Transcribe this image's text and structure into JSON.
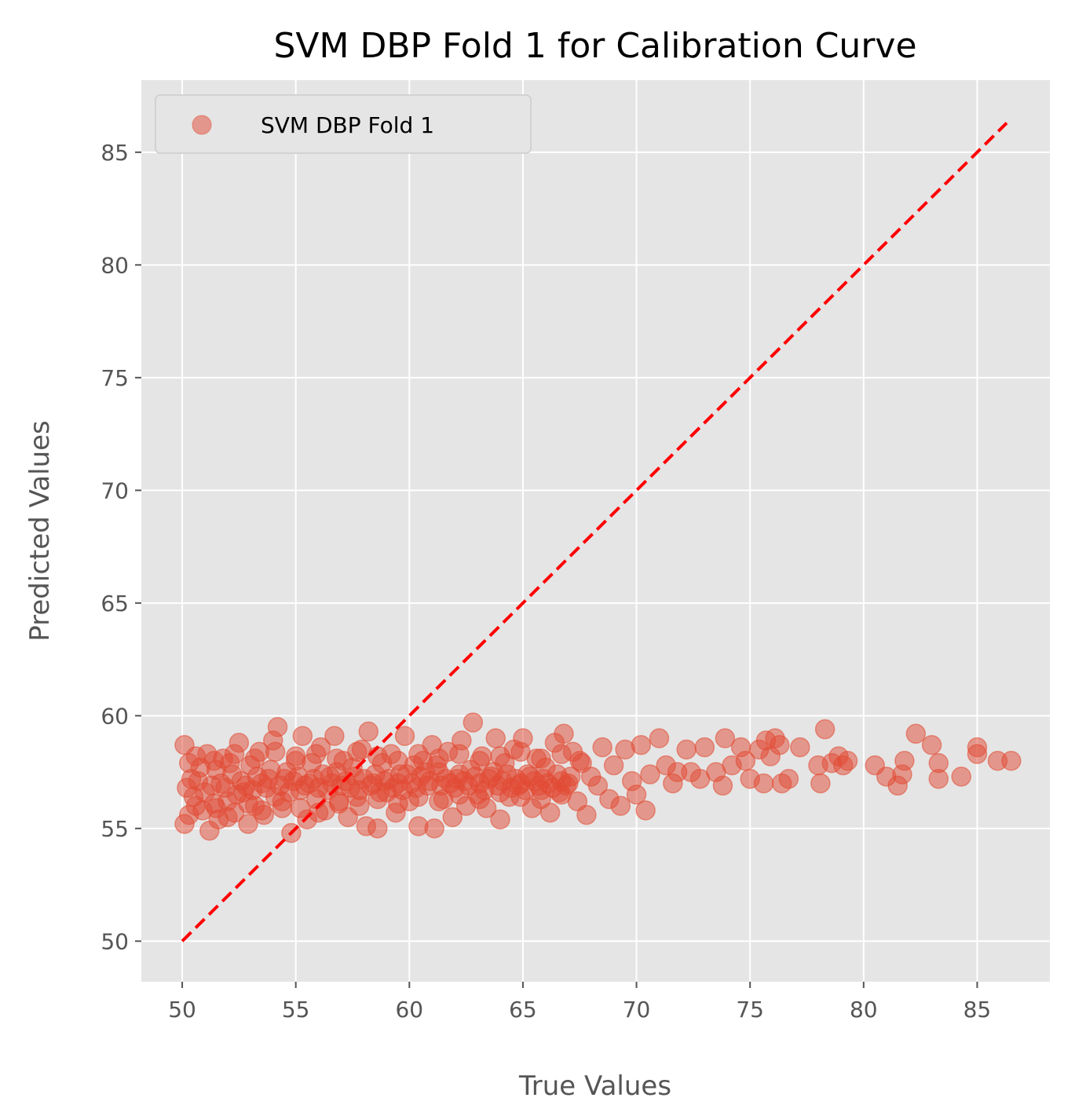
{
  "chart_data": {
    "type": "scatter",
    "title": "SVM DBP Fold 1 for Calibration Curve",
    "xlabel": "True Values",
    "ylabel": "Predicted Values",
    "xlim": [
      48.2,
      88.2
    ],
    "ylim": [
      48.2,
      88.2
    ],
    "xticks": [
      50,
      55,
      60,
      65,
      70,
      75,
      80,
      85
    ],
    "yticks": [
      50,
      55,
      60,
      65,
      70,
      75,
      80,
      85
    ],
    "grid": true,
    "legend_position": "top-left",
    "reference_line": {
      "style": "dashed",
      "color": "#ff0000",
      "x": [
        50,
        86.3
      ],
      "y": [
        50,
        86.3
      ]
    },
    "series": [
      {
        "name": "SVM DBP Fold 1",
        "color": "#e24a33",
        "opacity": 0.5,
        "points": [
          [
            50.1,
            58.7
          ],
          [
            50.1,
            55.2
          ],
          [
            50.3,
            57.9
          ],
          [
            50.5,
            56.4
          ],
          [
            50.7,
            57.1
          ],
          [
            50.9,
            55.8
          ],
          [
            51.1,
            58.3
          ],
          [
            51.2,
            54.9
          ],
          [
            51.3,
            56.9
          ],
          [
            51.5,
            57.6
          ],
          [
            51.6,
            55.4
          ],
          [
            51.8,
            58.1
          ],
          [
            52.0,
            56.2
          ],
          [
            52.2,
            57.4
          ],
          [
            52.3,
            55.7
          ],
          [
            52.5,
            58.8
          ],
          [
            52.7,
            56.6
          ],
          [
            52.9,
            55.2
          ],
          [
            53.0,
            57.8
          ],
          [
            53.2,
            56.0
          ],
          [
            53.4,
            58.4
          ],
          [
            53.6,
            55.6
          ],
          [
            53.8,
            57.2
          ],
          [
            54.0,
            58.9
          ],
          [
            54.1,
            56.4
          ],
          [
            54.2,
            59.5
          ],
          [
            54.4,
            55.9
          ],
          [
            54.6,
            57.5
          ],
          [
            54.8,
            54.8
          ],
          [
            55.0,
            58.2
          ],
          [
            55.2,
            56.7
          ],
          [
            55.3,
            59.1
          ],
          [
            55.5,
            55.4
          ],
          [
            55.7,
            57.9
          ],
          [
            55.9,
            56.3
          ],
          [
            56.1,
            58.6
          ],
          [
            56.3,
            55.8
          ],
          [
            56.5,
            57.3
          ],
          [
            56.7,
            59.1
          ],
          [
            56.9,
            56.1
          ],
          [
            57.1,
            58.0
          ],
          [
            57.3,
            55.5
          ],
          [
            57.5,
            57.7
          ],
          [
            57.7,
            56.4
          ],
          [
            57.9,
            58.5
          ],
          [
            58.1,
            55.1
          ],
          [
            58.2,
            59.3
          ],
          [
            58.4,
            57.0
          ],
          [
            58.6,
            55.0
          ],
          [
            58.8,
            57.9
          ],
          [
            59.0,
            56.6
          ],
          [
            59.2,
            58.3
          ],
          [
            59.4,
            55.7
          ],
          [
            59.6,
            57.4
          ],
          [
            59.8,
            59.1
          ],
          [
            60.0,
            56.2
          ],
          [
            60.2,
            57.8
          ],
          [
            60.4,
            55.1
          ],
          [
            60.6,
            58.0
          ],
          [
            60.8,
            56.9
          ],
          [
            61.0,
            58.7
          ],
          [
            61.1,
            55.0
          ],
          [
            61.3,
            57.5
          ],
          [
            61.5,
            56.3
          ],
          [
            61.7,
            58.4
          ],
          [
            61.9,
            55.5
          ],
          [
            62.1,
            57.2
          ],
          [
            62.3,
            58.9
          ],
          [
            62.5,
            56.0
          ],
          [
            62.7,
            57.6
          ],
          [
            62.8,
            59.7
          ],
          [
            63.0,
            56.5
          ],
          [
            63.2,
            58.2
          ],
          [
            63.4,
            55.9
          ],
          [
            63.6,
            57.3
          ],
          [
            63.8,
            59.0
          ],
          [
            64.0,
            55.4
          ],
          [
            64.2,
            57.9
          ],
          [
            64.4,
            56.4
          ],
          [
            64.6,
            58.5
          ],
          [
            64.8,
            56.9
          ],
          [
            65.0,
            59.0
          ],
          [
            65.2,
            57.4
          ],
          [
            65.4,
            55.9
          ],
          [
            65.6,
            58.1
          ],
          [
            65.8,
            56.3
          ],
          [
            66.0,
            57.7
          ],
          [
            66.2,
            55.7
          ],
          [
            66.4,
            58.8
          ],
          [
            66.6,
            56.6
          ],
          [
            66.8,
            59.2
          ],
          [
            67.0,
            57.0
          ],
          [
            67.2,
            58.4
          ],
          [
            67.4,
            56.2
          ],
          [
            67.6,
            57.9
          ],
          [
            67.8,
            55.6
          ],
          [
            68.0,
            57.3
          ],
          [
            68.3,
            56.9
          ],
          [
            68.5,
            58.6
          ],
          [
            68.8,
            56.3
          ],
          [
            69.0,
            57.8
          ],
          [
            69.3,
            56.0
          ],
          [
            69.5,
            58.5
          ],
          [
            69.8,
            57.1
          ],
          [
            70.0,
            56.5
          ],
          [
            70.2,
            58.7
          ],
          [
            70.4,
            55.8
          ],
          [
            70.6,
            57.4
          ],
          [
            71.0,
            59.0
          ],
          [
            71.3,
            57.8
          ],
          [
            71.6,
            57.0
          ],
          [
            71.8,
            57.5
          ],
          [
            72.2,
            58.5
          ],
          [
            72.4,
            57.5
          ],
          [
            72.8,
            57.2
          ],
          [
            73.0,
            58.6
          ],
          [
            73.5,
            57.5
          ],
          [
            73.8,
            56.9
          ],
          [
            73.9,
            59.0
          ],
          [
            74.2,
            57.8
          ],
          [
            74.6,
            58.6
          ],
          [
            74.8,
            58.0
          ],
          [
            75.0,
            57.2
          ],
          [
            75.4,
            58.5
          ],
          [
            75.6,
            57.0
          ],
          [
            75.7,
            58.9
          ],
          [
            75.9,
            58.2
          ],
          [
            76.1,
            59.0
          ],
          [
            76.3,
            58.7
          ],
          [
            76.4,
            57.0
          ],
          [
            76.7,
            57.2
          ],
          [
            77.2,
            58.6
          ],
          [
            78.0,
            57.8
          ],
          [
            78.1,
            57.0
          ],
          [
            78.3,
            59.4
          ],
          [
            78.6,
            57.9
          ],
          [
            78.9,
            58.2
          ],
          [
            79.1,
            57.8
          ],
          [
            79.3,
            58.0
          ],
          [
            80.5,
            57.8
          ],
          [
            81.0,
            57.3
          ],
          [
            81.5,
            56.9
          ],
          [
            81.7,
            57.4
          ],
          [
            81.8,
            58.0
          ],
          [
            82.3,
            59.2
          ],
          [
            83.0,
            58.7
          ],
          [
            83.3,
            57.9
          ],
          [
            83.3,
            57.2
          ],
          [
            84.3,
            57.3
          ],
          [
            85.0,
            58.3
          ],
          [
            85.0,
            58.6
          ],
          [
            85.9,
            58.0
          ],
          [
            86.5,
            58.0
          ],
          [
            50.2,
            56.8
          ],
          [
            50.4,
            57.2
          ],
          [
            50.6,
            56.0
          ],
          [
            50.8,
            57.7
          ],
          [
            51.0,
            56.6
          ],
          [
            51.4,
            56.1
          ],
          [
            51.7,
            57.0
          ],
          [
            51.9,
            56.8
          ],
          [
            52.1,
            57.9
          ],
          [
            52.4,
            56.5
          ],
          [
            52.6,
            57.1
          ],
          [
            52.8,
            56.9
          ],
          [
            53.1,
            56.7
          ],
          [
            53.3,
            57.3
          ],
          [
            53.5,
            57.0
          ],
          [
            53.7,
            56.8
          ],
          [
            53.9,
            57.6
          ],
          [
            54.3,
            56.9
          ],
          [
            54.5,
            57.2
          ],
          [
            54.7,
            56.6
          ],
          [
            54.9,
            57.1
          ],
          [
            55.1,
            57.3
          ],
          [
            55.4,
            56.9
          ],
          [
            55.6,
            57.0
          ],
          [
            55.8,
            57.2
          ],
          [
            56.0,
            56.8
          ],
          [
            56.2,
            57.4
          ],
          [
            56.4,
            56.7
          ],
          [
            56.6,
            57.0
          ],
          [
            56.8,
            57.5
          ],
          [
            57.0,
            56.9
          ],
          [
            57.2,
            57.1
          ],
          [
            57.4,
            56.8
          ],
          [
            57.6,
            57.3
          ],
          [
            57.8,
            56.7
          ],
          [
            58.0,
            57.2
          ],
          [
            58.3,
            56.9
          ],
          [
            58.5,
            57.4
          ],
          [
            58.7,
            56.6
          ],
          [
            58.9,
            57.1
          ],
          [
            59.1,
            57.2
          ],
          [
            59.3,
            56.8
          ],
          [
            59.5,
            57.0
          ],
          [
            59.7,
            56.7
          ],
          [
            59.9,
            57.4
          ],
          [
            60.1,
            57.0
          ],
          [
            60.3,
            56.8
          ],
          [
            60.5,
            57.3
          ],
          [
            60.7,
            57.5
          ],
          [
            60.9,
            57.1
          ],
          [
            61.2,
            57.8
          ],
          [
            61.4,
            56.9
          ],
          [
            61.6,
            57.2
          ],
          [
            61.8,
            57.0
          ],
          [
            62.0,
            56.8
          ],
          [
            62.2,
            57.4
          ],
          [
            62.4,
            57.1
          ],
          [
            62.6,
            56.9
          ],
          [
            62.9,
            57.3
          ],
          [
            63.1,
            57.0
          ],
          [
            63.3,
            56.7
          ],
          [
            63.5,
            57.2
          ],
          [
            63.7,
            57.5
          ],
          [
            63.9,
            56.9
          ],
          [
            64.1,
            57.1
          ],
          [
            64.3,
            57.4
          ],
          [
            64.5,
            56.8
          ],
          [
            64.7,
            57.2
          ],
          [
            64.9,
            57.0
          ],
          [
            65.1,
            56.7
          ],
          [
            65.3,
            57.3
          ],
          [
            65.5,
            57.1
          ],
          [
            65.7,
            56.9
          ],
          [
            65.9,
            57.2
          ],
          [
            66.1,
            57.0
          ],
          [
            66.3,
            56.8
          ],
          [
            66.5,
            57.4
          ],
          [
            66.7,
            57.1
          ],
          [
            66.9,
            56.9
          ],
          [
            67.1,
            57.3
          ],
          [
            50.3,
            55.6
          ],
          [
            51.5,
            55.9
          ],
          [
            52.0,
            55.5
          ],
          [
            52.9,
            56.1
          ],
          [
            53.5,
            55.8
          ],
          [
            54.4,
            56.2
          ],
          [
            55.2,
            55.9
          ],
          [
            56.0,
            55.7
          ],
          [
            56.9,
            56.2
          ],
          [
            57.8,
            56.0
          ],
          [
            58.6,
            56.3
          ],
          [
            59.5,
            56.1
          ],
          [
            60.4,
            56.4
          ],
          [
            61.3,
            56.2
          ],
          [
            62.2,
            56.5
          ],
          [
            63.1,
            56.3
          ],
          [
            64.0,
            56.6
          ],
          [
            64.9,
            56.4
          ],
          [
            65.8,
            56.7
          ],
          [
            66.7,
            56.5
          ],
          [
            50.6,
            58.2
          ],
          [
            51.4,
            58.0
          ],
          [
            52.3,
            58.3
          ],
          [
            53.2,
            58.1
          ],
          [
            54.1,
            58.4
          ],
          [
            55.0,
            58.0
          ],
          [
            55.9,
            58.3
          ],
          [
            56.8,
            58.1
          ],
          [
            57.7,
            58.4
          ],
          [
            58.6,
            58.2
          ],
          [
            59.5,
            58.0
          ],
          [
            60.4,
            58.3
          ],
          [
            61.3,
            58.1
          ],
          [
            62.2,
            58.3
          ],
          [
            63.1,
            58.0
          ],
          [
            64.0,
            58.2
          ],
          [
            64.9,
            58.4
          ],
          [
            65.8,
            58.1
          ],
          [
            66.7,
            58.3
          ],
          [
            67.5,
            58.0
          ]
        ]
      }
    ]
  }
}
